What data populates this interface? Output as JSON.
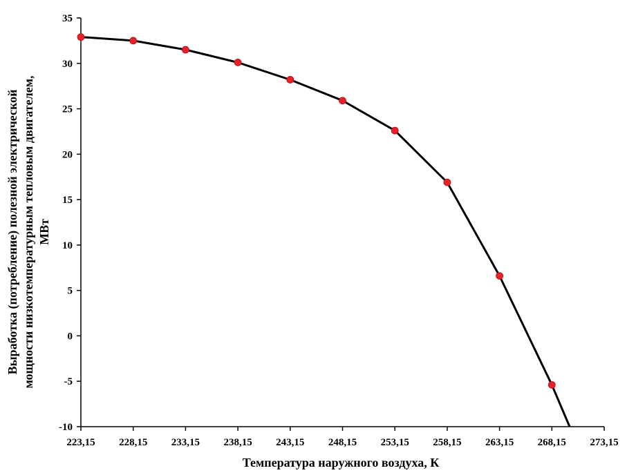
{
  "chart_data": {
    "type": "line",
    "xlabel": "Температура наружного воздуха, К",
    "ylabel_lines": [
      "Выработка (потребление) полезной электрической",
      "мощности низкотемпературным тепловым двигателем,",
      "МВт"
    ],
    "xlim": [
      223.15,
      273.15
    ],
    "ylim": [
      -10,
      35
    ],
    "x_ticks": [
      223.15,
      228.15,
      233.15,
      238.15,
      243.15,
      248.15,
      253.15,
      258.15,
      263.15,
      268.15,
      273.15
    ],
    "x_tick_labels": [
      "223,15",
      "228,15",
      "233,15",
      "238,15",
      "243,15",
      "248,15",
      "253,15",
      "258,15",
      "263,15",
      "268,15",
      "273,15"
    ],
    "y_ticks": [
      -10,
      -5,
      0,
      5,
      10,
      15,
      20,
      25,
      30,
      35
    ],
    "y_tick_labels": [
      "-10",
      "-5",
      "0",
      "5",
      "10",
      "15",
      "20",
      "25",
      "30",
      "35"
    ],
    "grid": false,
    "legend": "none",
    "series": [
      {
        "x": [
          223.15,
          228.15,
          233.15,
          238.15,
          243.15,
          248.15,
          253.15,
          258.15,
          263.15,
          268.15
        ],
        "y": [
          32.9,
          32.5,
          31.5,
          30.1,
          28.2,
          25.9,
          22.6,
          16.9,
          6.6,
          -5.4
        ],
        "line_extension": {
          "x": 269.85,
          "y": -10
        },
        "line_color": "#000000",
        "marker_color": "#e8202a"
      }
    ]
  }
}
